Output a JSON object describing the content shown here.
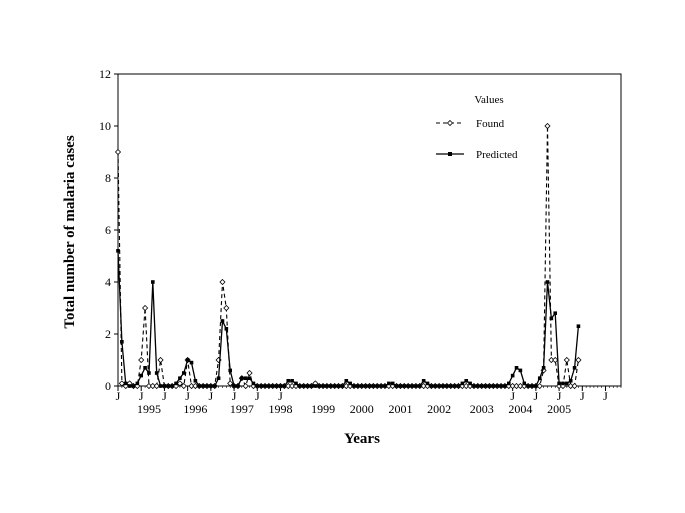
{
  "chart_data": {
    "type": "line",
    "title": "",
    "xlabel": "Years",
    "ylabel": "Total number of malaria cases",
    "ylim": [
      0,
      12
    ],
    "yticks": [
      0,
      2,
      4,
      6,
      8,
      10,
      12
    ],
    "xlim": [
      0,
      130
    ],
    "grid": false,
    "legend": {
      "title": "Values",
      "placement": "top-right",
      "entries": [
        {
          "name": "Found",
          "style": "dashed",
          "marker": "open-diamond"
        },
        {
          "name": "Predicted",
          "style": "solid",
          "marker": "filled-square"
        }
      ]
    },
    "x_month_ticks": [
      {
        "x": 0,
        "label": "J"
      },
      {
        "x": 6,
        "label": "J"
      },
      {
        "x": 12,
        "label": "J"
      },
      {
        "x": 18,
        "label": "J"
      },
      {
        "x": 24,
        "label": "J"
      },
      {
        "x": 30,
        "label": "J"
      },
      {
        "x": 36,
        "label": "J"
      },
      {
        "x": 42,
        "label": "J"
      },
      {
        "x": 102,
        "label": "J"
      },
      {
        "x": 108,
        "label": "J"
      },
      {
        "x": 114,
        "label": "J"
      },
      {
        "x": 120,
        "label": "J"
      },
      {
        "x": 126,
        "label": "J"
      }
    ],
    "x_year_labels": [
      {
        "x": 8,
        "label": "1995"
      },
      {
        "x": 20,
        "label": "1996"
      },
      {
        "x": 32,
        "label": "1997"
      },
      {
        "x": 42,
        "label": "1998"
      },
      {
        "x": 53,
        "label": "1999"
      },
      {
        "x": 63,
        "label": "2000"
      },
      {
        "x": 73,
        "label": "2001"
      },
      {
        "x": 83,
        "label": "2002"
      },
      {
        "x": 94,
        "label": "2003"
      },
      {
        "x": 104,
        "label": "2004"
      },
      {
        "x": 114,
        "label": "2005"
      }
    ],
    "series": [
      {
        "name": "Found",
        "points": [
          [
            0,
            9
          ],
          [
            1,
            0.1
          ],
          [
            2,
            0
          ],
          [
            3,
            0.1
          ],
          [
            4,
            0
          ],
          [
            5,
            0
          ],
          [
            6,
            1
          ],
          [
            7,
            3
          ],
          [
            8,
            0
          ],
          [
            9,
            0
          ],
          [
            10,
            0
          ],
          [
            11,
            1
          ],
          [
            12,
            0
          ],
          [
            13,
            0
          ],
          [
            14,
            0
          ],
          [
            15,
            0
          ],
          [
            16,
            0.1
          ],
          [
            17,
            0
          ],
          [
            18,
            1
          ],
          [
            19,
            0
          ],
          [
            20,
            0
          ],
          [
            21,
            0
          ],
          [
            22,
            0
          ],
          [
            23,
            0
          ],
          [
            24,
            0
          ],
          [
            25,
            0
          ],
          [
            26,
            1
          ],
          [
            27,
            4
          ],
          [
            28,
            3
          ],
          [
            29,
            0.1
          ],
          [
            30,
            0
          ],
          [
            31,
            0
          ],
          [
            32,
            0.3
          ],
          [
            33,
            0
          ],
          [
            34,
            0.5
          ],
          [
            35,
            0
          ],
          [
            36,
            0
          ],
          [
            37,
            0
          ],
          [
            38,
            0
          ],
          [
            39,
            0
          ],
          [
            40,
            0
          ],
          [
            41,
            0
          ],
          [
            42,
            0
          ],
          [
            43,
            0
          ],
          [
            44,
            0
          ],
          [
            45,
            0
          ],
          [
            46,
            0
          ],
          [
            47,
            0
          ],
          [
            48,
            0
          ],
          [
            49,
            0
          ],
          [
            50,
            0
          ],
          [
            51,
            0.1
          ],
          [
            52,
            0
          ],
          [
            53,
            0
          ],
          [
            54,
            0
          ],
          [
            55,
            0
          ],
          [
            56,
            0
          ],
          [
            57,
            0
          ],
          [
            58,
            0
          ],
          [
            59,
            0
          ],
          [
            60,
            0
          ],
          [
            61,
            0
          ],
          [
            62,
            0
          ],
          [
            63,
            0
          ],
          [
            64,
            0
          ],
          [
            65,
            0
          ],
          [
            66,
            0
          ],
          [
            67,
            0
          ],
          [
            68,
            0
          ],
          [
            69,
            0
          ],
          [
            70,
            0
          ],
          [
            71,
            0
          ],
          [
            72,
            0
          ],
          [
            73,
            0
          ],
          [
            74,
            0
          ],
          [
            75,
            0
          ],
          [
            76,
            0
          ],
          [
            77,
            0
          ],
          [
            78,
            0
          ],
          [
            79,
            0
          ],
          [
            80,
            0
          ],
          [
            81,
            0
          ],
          [
            82,
            0
          ],
          [
            83,
            0
          ],
          [
            84,
            0
          ],
          [
            85,
            0
          ],
          [
            86,
            0
          ],
          [
            87,
            0
          ],
          [
            88,
            0
          ],
          [
            89,
            0
          ],
          [
            90,
            0
          ],
          [
            91,
            0
          ],
          [
            92,
            0
          ],
          [
            93,
            0
          ],
          [
            94,
            0
          ],
          [
            95,
            0
          ],
          [
            96,
            0
          ],
          [
            97,
            0
          ],
          [
            98,
            0
          ],
          [
            99,
            0
          ],
          [
            100,
            0
          ],
          [
            101,
            0
          ],
          [
            102,
            0
          ],
          [
            103,
            0
          ],
          [
            104,
            0
          ],
          [
            105,
            0
          ],
          [
            106,
            0
          ],
          [
            107,
            0
          ],
          [
            108,
            0
          ],
          [
            109,
            0
          ],
          [
            110,
            0.6
          ],
          [
            111,
            10
          ],
          [
            112,
            1
          ],
          [
            113,
            1
          ],
          [
            114,
            0
          ],
          [
            115,
            0
          ],
          [
            116,
            1
          ],
          [
            117,
            0
          ],
          [
            118,
            0
          ],
          [
            119,
            1
          ]
        ]
      },
      {
        "name": "Predicted",
        "points": [
          [
            0,
            5.2
          ],
          [
            1,
            1.7
          ],
          [
            2,
            0.1
          ],
          [
            3,
            0
          ],
          [
            4,
            0
          ],
          [
            5,
            0.1
          ],
          [
            6,
            0.4
          ],
          [
            7,
            0.7
          ],
          [
            8,
            0.5
          ],
          [
            9,
            4
          ],
          [
            10,
            0.5
          ],
          [
            11,
            0
          ],
          [
            12,
            0
          ],
          [
            13,
            0
          ],
          [
            14,
            0
          ],
          [
            15,
            0.1
          ],
          [
            16,
            0.3
          ],
          [
            17,
            0.5
          ],
          [
            18,
            1
          ],
          [
            19,
            0.9
          ],
          [
            20,
            0.2
          ],
          [
            21,
            0
          ],
          [
            22,
            0
          ],
          [
            23,
            0
          ],
          [
            24,
            0
          ],
          [
            25,
            0
          ],
          [
            26,
            0.3
          ],
          [
            27,
            2.5
          ],
          [
            28,
            2.2
          ],
          [
            29,
            0.6
          ],
          [
            30,
            0
          ],
          [
            31,
            0
          ],
          [
            32,
            0.3
          ],
          [
            33,
            0.3
          ],
          [
            34,
            0.3
          ],
          [
            35,
            0.1
          ],
          [
            36,
            0
          ],
          [
            37,
            0
          ],
          [
            38,
            0
          ],
          [
            39,
            0
          ],
          [
            40,
            0
          ],
          [
            41,
            0
          ],
          [
            42,
            0
          ],
          [
            43,
            0
          ],
          [
            44,
            0.2
          ],
          [
            45,
            0.2
          ],
          [
            46,
            0.1
          ],
          [
            47,
            0
          ],
          [
            48,
            0
          ],
          [
            49,
            0
          ],
          [
            50,
            0
          ],
          [
            51,
            0
          ],
          [
            52,
            0
          ],
          [
            53,
            0
          ],
          [
            54,
            0
          ],
          [
            55,
            0
          ],
          [
            56,
            0
          ],
          [
            57,
            0
          ],
          [
            58,
            0
          ],
          [
            59,
            0.2
          ],
          [
            60,
            0.1
          ],
          [
            61,
            0
          ],
          [
            62,
            0
          ],
          [
            63,
            0
          ],
          [
            64,
            0
          ],
          [
            65,
            0
          ],
          [
            66,
            0
          ],
          [
            67,
            0
          ],
          [
            68,
            0
          ],
          [
            69,
            0
          ],
          [
            70,
            0.1
          ],
          [
            71,
            0.1
          ],
          [
            72,
            0
          ],
          [
            73,
            0
          ],
          [
            74,
            0
          ],
          [
            75,
            0
          ],
          [
            76,
            0
          ],
          [
            77,
            0
          ],
          [
            78,
            0
          ],
          [
            79,
            0.2
          ],
          [
            80,
            0.1
          ],
          [
            81,
            0
          ],
          [
            82,
            0
          ],
          [
            83,
            0
          ],
          [
            84,
            0
          ],
          [
            85,
            0
          ],
          [
            86,
            0
          ],
          [
            87,
            0
          ],
          [
            88,
            0
          ],
          [
            89,
            0.1
          ],
          [
            90,
            0.2
          ],
          [
            91,
            0.1
          ],
          [
            92,
            0
          ],
          [
            93,
            0
          ],
          [
            94,
            0
          ],
          [
            95,
            0
          ],
          [
            96,
            0
          ],
          [
            97,
            0
          ],
          [
            98,
            0
          ],
          [
            99,
            0
          ],
          [
            100,
            0
          ],
          [
            101,
            0.1
          ],
          [
            102,
            0.4
          ],
          [
            103,
            0.7
          ],
          [
            104,
            0.6
          ],
          [
            105,
            0.1
          ],
          [
            106,
            0
          ],
          [
            107,
            0
          ],
          [
            108,
            0
          ],
          [
            109,
            0.3
          ],
          [
            110,
            0.7
          ],
          [
            111,
            4
          ],
          [
            112,
            2.6
          ],
          [
            113,
            2.8
          ],
          [
            114,
            0.1
          ],
          [
            115,
            0.1
          ],
          [
            116,
            0.1
          ],
          [
            117,
            0.2
          ],
          [
            118,
            0.7
          ],
          [
            119,
            2.3
          ]
        ]
      }
    ]
  }
}
